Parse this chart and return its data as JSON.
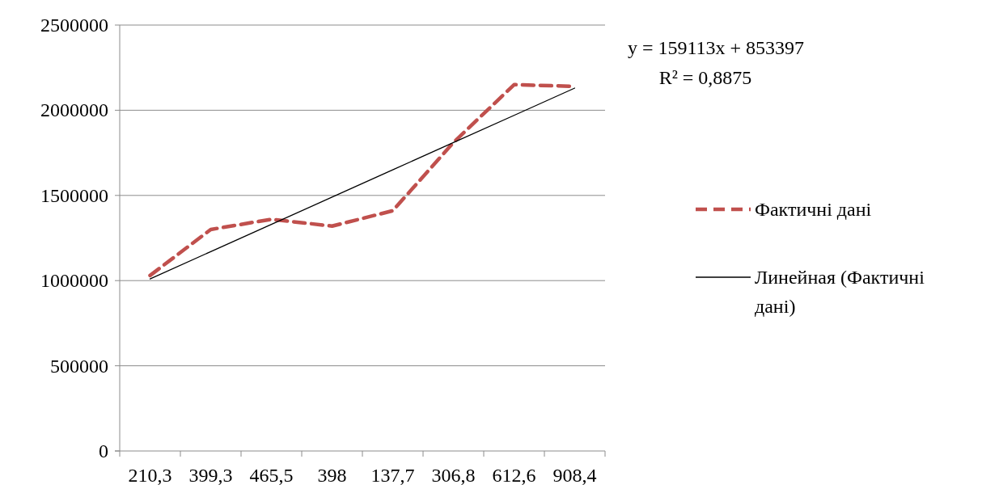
{
  "chart_data": {
    "type": "line",
    "categories": [
      "210,3",
      "399,3",
      "465,5",
      "398",
      "137,7",
      "306,8",
      "612,6",
      "908,4"
    ],
    "series": [
      {
        "name": "Фактичні дані",
        "color": "#c0504d",
        "line_style": "dashed",
        "values": [
          1030000,
          1300000,
          1360000,
          1320000,
          1410000,
          1810000,
          2150000,
          2140000
        ]
      },
      {
        "name": "Линейная (Фактичні дані)",
        "color": "#000000",
        "line_style": "solid",
        "values": [
          1010000,
          1170000,
          1330000,
          1490000,
          1650000,
          1810000,
          1970000,
          2130000
        ]
      }
    ],
    "ylim": [
      0,
      2500000
    ],
    "yticks": [
      0,
      500000,
      1000000,
      1500000,
      2000000,
      2500000
    ],
    "grid": "y",
    "legend": "right",
    "marker": "none",
    "annotations": [
      "y = 159113x + 853397",
      "R² = 0,8875"
    ]
  }
}
